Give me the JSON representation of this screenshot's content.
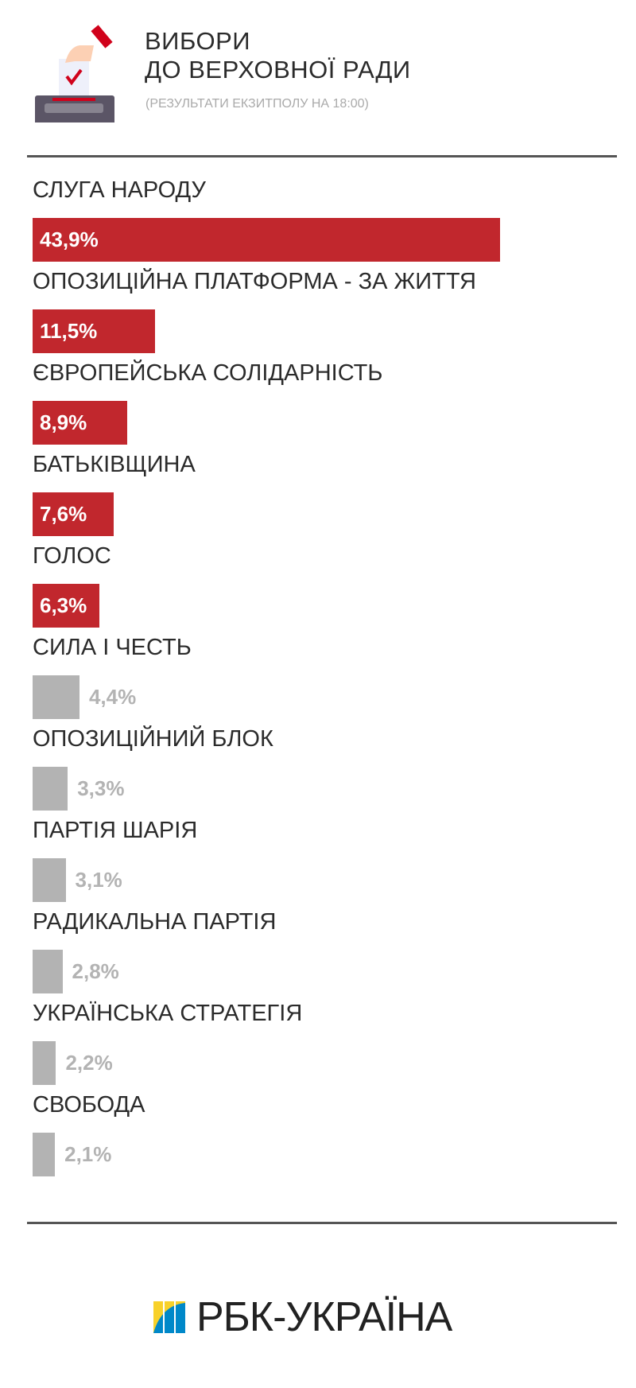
{
  "header": {
    "title_line1": "ВИБОРИ",
    "title_line2": "ДО ВЕРХОВНОЇ РАДИ",
    "subtitle": "(РЕЗУЛЬТАТИ ЕКЗИТПОЛУ НА 18:00)",
    "icon": "ballot-box-icon"
  },
  "chart_data": {
    "type": "bar",
    "orientation": "horizontal",
    "categories": [
      "СЛУГА НАРОДУ",
      "ОПОЗИЦІЙНА ПЛАТФОРМА - ЗА ЖИТТЯ",
      "ЄВРОПЕЙСЬКА СОЛІДАРНІСТЬ",
      "БАТЬКІВЩИНА",
      "ГОЛОС",
      "СИЛА І ЧЕСТЬ",
      "ОПОЗИЦІЙНИЙ БЛОК",
      "ПАРТІЯ ШАРІЯ",
      "РАДИКАЛЬНА ПАРТІЯ",
      "УКРАЇНСЬКА СТРАТЕГІЯ",
      "СВОБОДА"
    ],
    "values": [
      43.9,
      11.5,
      8.9,
      7.6,
      6.3,
      4.4,
      3.3,
      3.1,
      2.8,
      2.2,
      2.1
    ],
    "value_labels": [
      "43,9%",
      "11,5%",
      "8,9%",
      "7,6%",
      "6,3%",
      "4,4%",
      "3,3%",
      "3,1%",
      "2,8%",
      "2,2%",
      "2,1%"
    ],
    "passing_threshold_colors": {
      "above": "#c1272d",
      "below": "#b3b3b3"
    },
    "threshold": 5
  },
  "footer": {
    "logo_text": "РБК-УКРАЇНА"
  }
}
